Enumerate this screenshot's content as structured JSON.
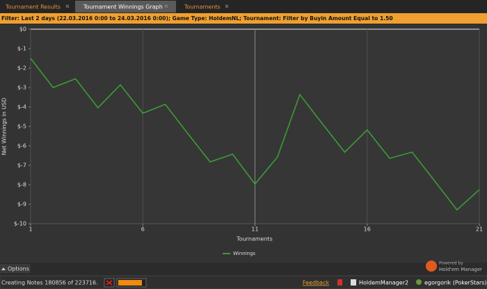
{
  "tabs": [
    "Tournament Results",
    "Tournament Winnings Graph",
    "Tournaments"
  ],
  "filter": "Filter: Last 2 days (22.03.2016 0:00 to 24.03.2016 0:00); Game Type: HoldemNL; Tournament: Filter by Buyin Amount Equal to 1.50",
  "chart_data": {
    "type": "line",
    "x_label": "Tournaments",
    "y_label": "Net Winnings in USD",
    "x": [
      1,
      2,
      3,
      4,
      5,
      6,
      7,
      8,
      9,
      10,
      11,
      12,
      13,
      14,
      15,
      16,
      17,
      18,
      19,
      20,
      21
    ],
    "series": [
      {
        "name": "Winnings",
        "color": "#3d9b35",
        "values": [
          -1.5,
          -3.0,
          -2.55,
          -4.04,
          -2.86,
          -4.32,
          -3.86,
          -5.36,
          -6.82,
          -6.43,
          -7.96,
          -6.57,
          -3.36,
          -4.86,
          -6.32,
          -5.18,
          -6.64,
          -6.32,
          -7.79,
          -9.29,
          -8.25
        ]
      }
    ],
    "xlim": [
      1,
      21
    ],
    "xticks": [
      1,
      6,
      11,
      16,
      21
    ],
    "ylim": [
      -10,
      0
    ],
    "yticks": [
      {
        "value": 0,
        "label": "$0"
      },
      {
        "value": -1,
        "label": "$-1"
      },
      {
        "value": -2,
        "label": "$-2"
      },
      {
        "value": -3,
        "label": "$-3"
      },
      {
        "value": -4,
        "label": "$-4"
      },
      {
        "value": -5,
        "label": "$-5"
      },
      {
        "value": -6,
        "label": "$-6"
      },
      {
        "value": -7,
        "label": "$-7"
      },
      {
        "value": -8,
        "label": "$-8"
      },
      {
        "value": -9,
        "label": "$-9"
      },
      {
        "value": -10,
        "label": "$-10"
      }
    ],
    "grid": true
  },
  "options": "Options",
  "status": {
    "notes": "Creating Notes 180856 of 223716.",
    "feedback": "Feedback",
    "app": "HoldemManager2",
    "user": "egorgorik (PokerStars)"
  },
  "branding": {
    "powered": "Powered by",
    "name": "Hold'em Manager"
  }
}
